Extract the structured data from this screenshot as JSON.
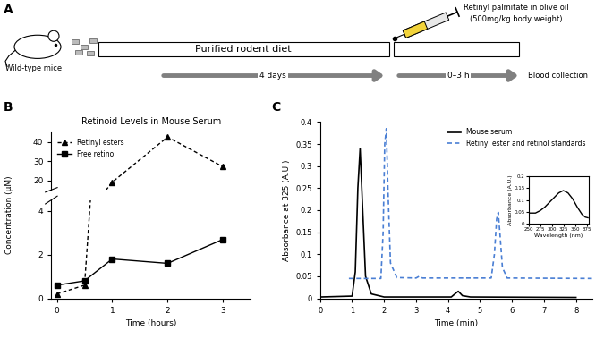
{
  "diagram": {
    "label": "A",
    "subject": "Wild-type mice",
    "diet": "Purified rodent diet",
    "diet_duration": "4 days",
    "dose": [
      "Retinyl palmitate in olive oil",
      "(500mg/kg body weight)"
    ],
    "dose_window": "0–3 h",
    "endpoint": "Blood collection"
  },
  "chart_data": [
    {
      "panel": "B",
      "type": "line",
      "title": "Retinoid Levels in Mouse Serum",
      "x_label": "Time (hours)",
      "y_label": "Concentration (µM)",
      "x": [
        0,
        0.5,
        1,
        2,
        3
      ],
      "xlim": [
        -0.1,
        3.5
      ],
      "xticks": [
        0,
        1,
        2,
        3
      ],
      "ylim": [
        0,
        45
      ],
      "ybreak": [
        4.5,
        15
      ],
      "yticks": [
        0,
        2,
        4,
        20,
        30,
        40
      ],
      "legend": "upper left",
      "series": [
        {
          "name": "Retinyl esters",
          "color": "#000000",
          "marker": "triangle",
          "line_style": "dashed",
          "values": [
            0.2,
            0.6,
            19,
            42.5,
            27
          ]
        },
        {
          "name": "Free retinol",
          "color": "#000000",
          "marker": "square",
          "line_style": "solid",
          "values": [
            0.6,
            0.8,
            1.8,
            1.6,
            2.7
          ]
        }
      ]
    },
    {
      "panel": "C",
      "type": "line",
      "x_label": "Time (min)",
      "y_label": "Absorbance at 325 (A.U.)",
      "xlim": [
        0,
        8.5
      ],
      "xticks": [
        0,
        1,
        2,
        3,
        4,
        5,
        6,
        7,
        8
      ],
      "ylim": [
        0,
        0.4
      ],
      "yticks": [
        0,
        0.05,
        0.1,
        0.15,
        0.2,
        0.25,
        0.3,
        0.35,
        0.4
      ],
      "legend": "upper right",
      "series": [
        {
          "name": "Mouse serum",
          "color": "#000000",
          "line_style": "solid",
          "x": [
            0,
            1.0,
            1.1,
            1.18,
            1.25,
            1.32,
            1.42,
            1.6,
            2.0,
            4.1,
            4.25,
            4.32,
            4.45,
            4.7,
            8.0
          ],
          "values": [
            0.003,
            0.005,
            0.06,
            0.25,
            0.34,
            0.22,
            0.05,
            0.01,
            0.003,
            0.003,
            0.012,
            0.016,
            0.006,
            0.003,
            0.002
          ]
        },
        {
          "name": "Retinyl ester and retinol standards",
          "color": "#4a7fd4",
          "line_style": "dashed",
          "x": [
            0.9,
            1.9,
            1.97,
            2.02,
            2.07,
            2.12,
            2.2,
            2.4,
            3.0,
            3.1,
            3.2,
            5.35,
            5.45,
            5.52,
            5.57,
            5.62,
            5.7,
            5.85,
            8.5
          ],
          "values": [
            0.045,
            0.045,
            0.15,
            0.35,
            0.385,
            0.25,
            0.08,
            0.047,
            0.046,
            0.05,
            0.046,
            0.046,
            0.1,
            0.18,
            0.195,
            0.15,
            0.07,
            0.046,
            0.045
          ]
        }
      ],
      "inset": {
        "type": "line",
        "x_label": "Wavelength (nm)",
        "y_label": "Absorbance (A.U.)",
        "color": "#000000",
        "x": [
          252,
          265,
          275,
          285,
          295,
          305,
          315,
          325,
          335,
          345,
          355,
          365,
          372,
          378
        ],
        "values": [
          0.045,
          0.045,
          0.055,
          0.07,
          0.09,
          0.11,
          0.13,
          0.14,
          0.13,
          0.105,
          0.07,
          0.04,
          0.028,
          0.025
        ],
        "xlim": [
          250,
          380
        ],
        "xticks": [
          250,
          275,
          300,
          325,
          350,
          375
        ],
        "ylim": [
          0,
          0.2
        ],
        "yticks": [
          0,
          0.05,
          0.1,
          0.15,
          0.2
        ]
      }
    }
  ]
}
